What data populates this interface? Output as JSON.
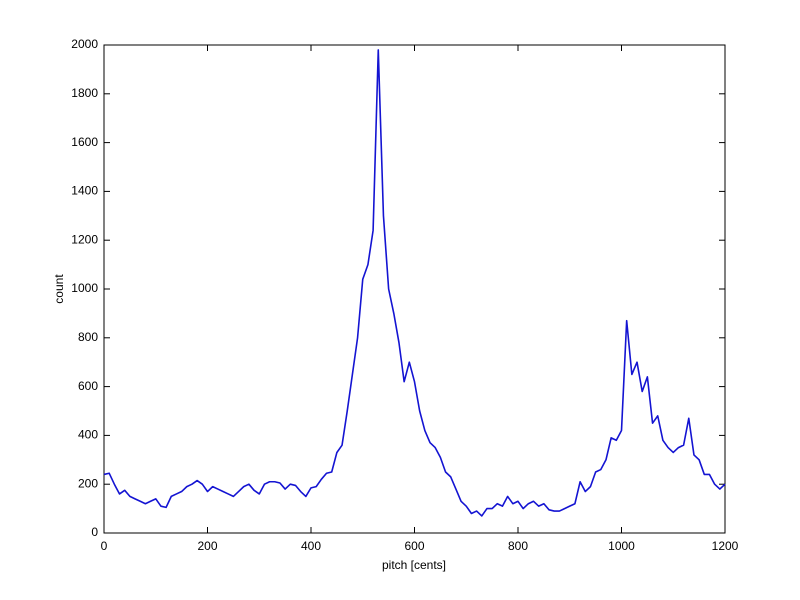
{
  "chart_data": {
    "type": "line",
    "xlabel": "pitch [cents]",
    "ylabel": "count",
    "x": [
      0,
      10,
      20,
      30,
      40,
      50,
      60,
      70,
      80,
      90,
      100,
      110,
      120,
      130,
      140,
      150,
      160,
      170,
      180,
      190,
      200,
      210,
      220,
      230,
      240,
      250,
      260,
      270,
      280,
      290,
      300,
      310,
      320,
      330,
      340,
      350,
      360,
      370,
      380,
      390,
      400,
      410,
      420,
      430,
      440,
      450,
      460,
      470,
      480,
      490,
      500,
      510,
      520,
      530,
      540,
      550,
      560,
      570,
      580,
      590,
      600,
      610,
      620,
      630,
      640,
      650,
      660,
      670,
      680,
      690,
      700,
      710,
      720,
      730,
      740,
      750,
      760,
      770,
      780,
      790,
      800,
      810,
      820,
      830,
      840,
      850,
      860,
      870,
      880,
      890,
      900,
      910,
      920,
      930,
      940,
      950,
      960,
      970,
      980,
      990,
      1000,
      1010,
      1020,
      1030,
      1040,
      1050,
      1060,
      1070,
      1080,
      1090,
      1100,
      1110,
      1120,
      1130,
      1140,
      1150,
      1160,
      1170,
      1180,
      1190,
      1200
    ],
    "series": [
      {
        "name": "count",
        "color": "#1414d2",
        "values": [
          240,
          245,
          200,
          160,
          175,
          150,
          140,
          130,
          120,
          130,
          140,
          110,
          105,
          150,
          160,
          170,
          190,
          200,
          215,
          200,
          170,
          190,
          180,
          170,
          160,
          150,
          170,
          190,
          200,
          175,
          160,
          200,
          210,
          210,
          205,
          180,
          200,
          195,
          170,
          150,
          185,
          190,
          220,
          245,
          250,
          330,
          360,
          500,
          650,
          800,
          1040,
          1100,
          1240,
          1980,
          1300,
          1000,
          900,
          780,
          620,
          700,
          620,
          500,
          420,
          370,
          350,
          310,
          250,
          230,
          180,
          130,
          110,
          80,
          90,
          70,
          100,
          100,
          120,
          110,
          150,
          120,
          130,
          100,
          120,
          130,
          110,
          120,
          95,
          90,
          90,
          100,
          110,
          120,
          210,
          170,
          190,
          250,
          260,
          300,
          390,
          380,
          420,
          870,
          650,
          700,
          580,
          640,
          450,
          480,
          380,
          350,
          330,
          350,
          360,
          470,
          320,
          300,
          240,
          240,
          200,
          180,
          200
        ]
      }
    ],
    "xlim": [
      0,
      1200
    ],
    "xticks": [
      0,
      200,
      400,
      600,
      800,
      1000,
      1200
    ],
    "ylim": [
      0,
      2000
    ],
    "yticks": [
      0,
      200,
      400,
      600,
      800,
      1000,
      1200,
      1400,
      1600,
      1800,
      2000
    ]
  }
}
